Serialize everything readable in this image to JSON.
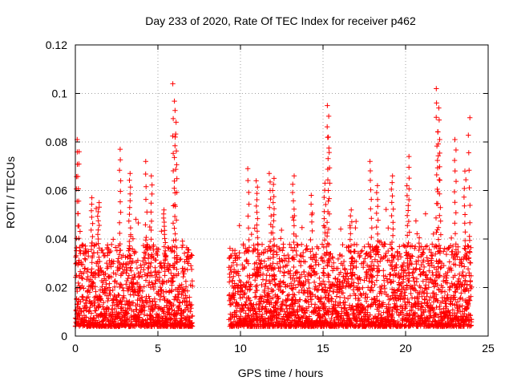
{
  "chart_data": {
    "type": "scatter",
    "title": "Day 233 of 2020, Rate Of TEC Index for receiver p462",
    "xlabel": "GPS time / hours",
    "ylabel": "ROTI / TECUs",
    "xlim": [
      0,
      25
    ],
    "ylim": [
      0,
      0.12
    ],
    "x_ticks": [
      0,
      5,
      10,
      15,
      20,
      25
    ],
    "x_tick_labels": [
      "0",
      "5",
      "10",
      "15",
      "20",
      "25"
    ],
    "y_ticks": [
      0,
      0.02,
      0.04,
      0.06,
      0.08,
      0.1,
      0.12
    ],
    "y_tick_labels": [
      "0",
      "0.02",
      "0.04",
      "0.06",
      "0.08",
      "0.1",
      "0.12"
    ],
    "grid": true,
    "legend": "none",
    "marker": "plus",
    "series": [
      {
        "color": "#ff0000",
        "segments": [
          [
            0,
            7.1
          ],
          [
            9.3,
            24.0
          ]
        ],
        "peaks": [
          {
            "x": 0.1,
            "y": 0.081
          },
          {
            "x": 0.2,
            "y": 0.076
          },
          {
            "x": 1.0,
            "y": 0.057
          },
          {
            "x": 1.4,
            "y": 0.055
          },
          {
            "x": 2.7,
            "y": 0.077
          },
          {
            "x": 3.3,
            "y": 0.067
          },
          {
            "x": 4.3,
            "y": 0.072
          },
          {
            "x": 4.6,
            "y": 0.066
          },
          {
            "x": 5.4,
            "y": 0.052
          },
          {
            "x": 5.95,
            "y": 0.104
          },
          {
            "x": 6.05,
            "y": 0.093
          },
          {
            "x": 6.1,
            "y": 0.082
          },
          {
            "x": 10.5,
            "y": 0.069
          },
          {
            "x": 11.0,
            "y": 0.064
          },
          {
            "x": 11.8,
            "y": 0.067
          },
          {
            "x": 12.0,
            "y": 0.065
          },
          {
            "x": 13.2,
            "y": 0.066
          },
          {
            "x": 14.3,
            "y": 0.058
          },
          {
            "x": 15.1,
            "y": 0.063
          },
          {
            "x": 15.3,
            "y": 0.095
          },
          {
            "x": 15.35,
            "y": 0.082
          },
          {
            "x": 16.7,
            "y": 0.052
          },
          {
            "x": 17.9,
            "y": 0.072
          },
          {
            "x": 18.3,
            "y": 0.062
          },
          {
            "x": 19.2,
            "y": 0.066
          },
          {
            "x": 20.1,
            "y": 0.062
          },
          {
            "x": 20.2,
            "y": 0.074
          },
          {
            "x": 21.9,
            "y": 0.102
          },
          {
            "x": 22.0,
            "y": 0.094
          },
          {
            "x": 22.1,
            "y": 0.081
          },
          {
            "x": 23.0,
            "y": 0.081
          },
          {
            "x": 23.6,
            "y": 0.068
          },
          {
            "x": 23.85,
            "y": 0.09
          }
        ]
      }
    ]
  }
}
